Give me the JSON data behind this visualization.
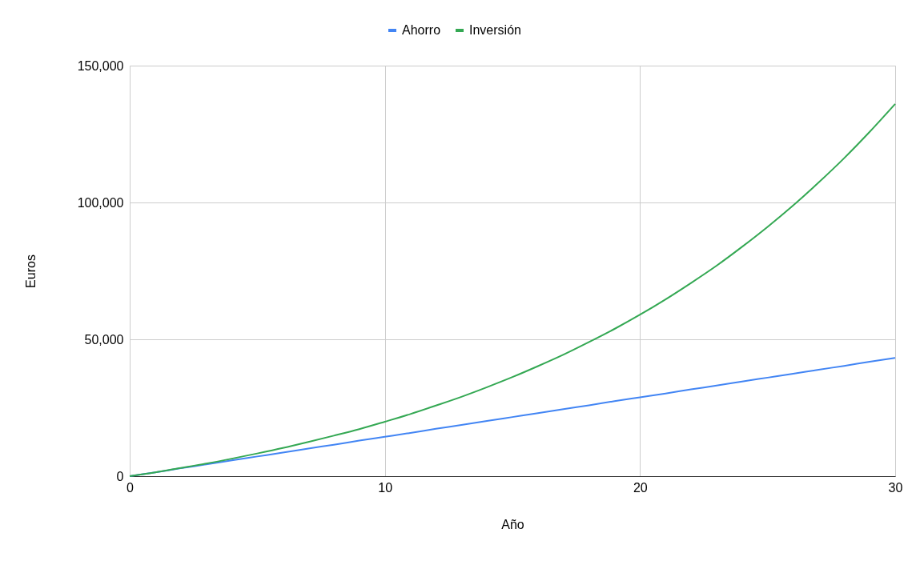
{
  "chart_data": {
    "type": "line",
    "xlabel": "Año",
    "ylabel": "Euros",
    "x": [
      0,
      1,
      2,
      3,
      4,
      5,
      6,
      7,
      8,
      9,
      10,
      11,
      12,
      13,
      14,
      15,
      16,
      17,
      18,
      19,
      20,
      21,
      22,
      23,
      24,
      25,
      26,
      27,
      28,
      29,
      30
    ],
    "series": [
      {
        "name": "Ahorro",
        "color": "#4285f4",
        "values": [
          0,
          1400,
          2900,
          4300,
          5800,
          7200,
          8600,
          10100,
          11500,
          13000,
          14400,
          15800,
          17300,
          18700,
          20200,
          21600,
          23000,
          24500,
          25900,
          27400,
          28800,
          30200,
          31700,
          33100,
          34600,
          36000,
          37400,
          38900,
          40300,
          41800,
          43200
        ]
      },
      {
        "name": "Inversión",
        "color": "#34a853",
        "values": [
          0,
          1400,
          3000,
          4600,
          6400,
          8300,
          10300,
          12500,
          14800,
          17200,
          19900,
          22700,
          25800,
          29000,
          32500,
          36200,
          40200,
          44400,
          49000,
          53800,
          59000,
          64600,
          70600,
          76900,
          83800,
          91100,
          98900,
          107300,
          116200,
          125800,
          136000
        ]
      }
    ],
    "xlim": [
      0,
      30
    ],
    "xticks": [
      0,
      10,
      20,
      30
    ],
    "ylim": [
      0,
      150000
    ],
    "yticks": [
      0,
      {
        "value": 50000,
        "label": "50,000"
      },
      {
        "value": 100000,
        "label": "100,000"
      },
      {
        "value": 150000,
        "label": "150,000"
      }
    ],
    "grid": true,
    "legend": "top",
    "marker": "none",
    "line_style": "solid"
  }
}
